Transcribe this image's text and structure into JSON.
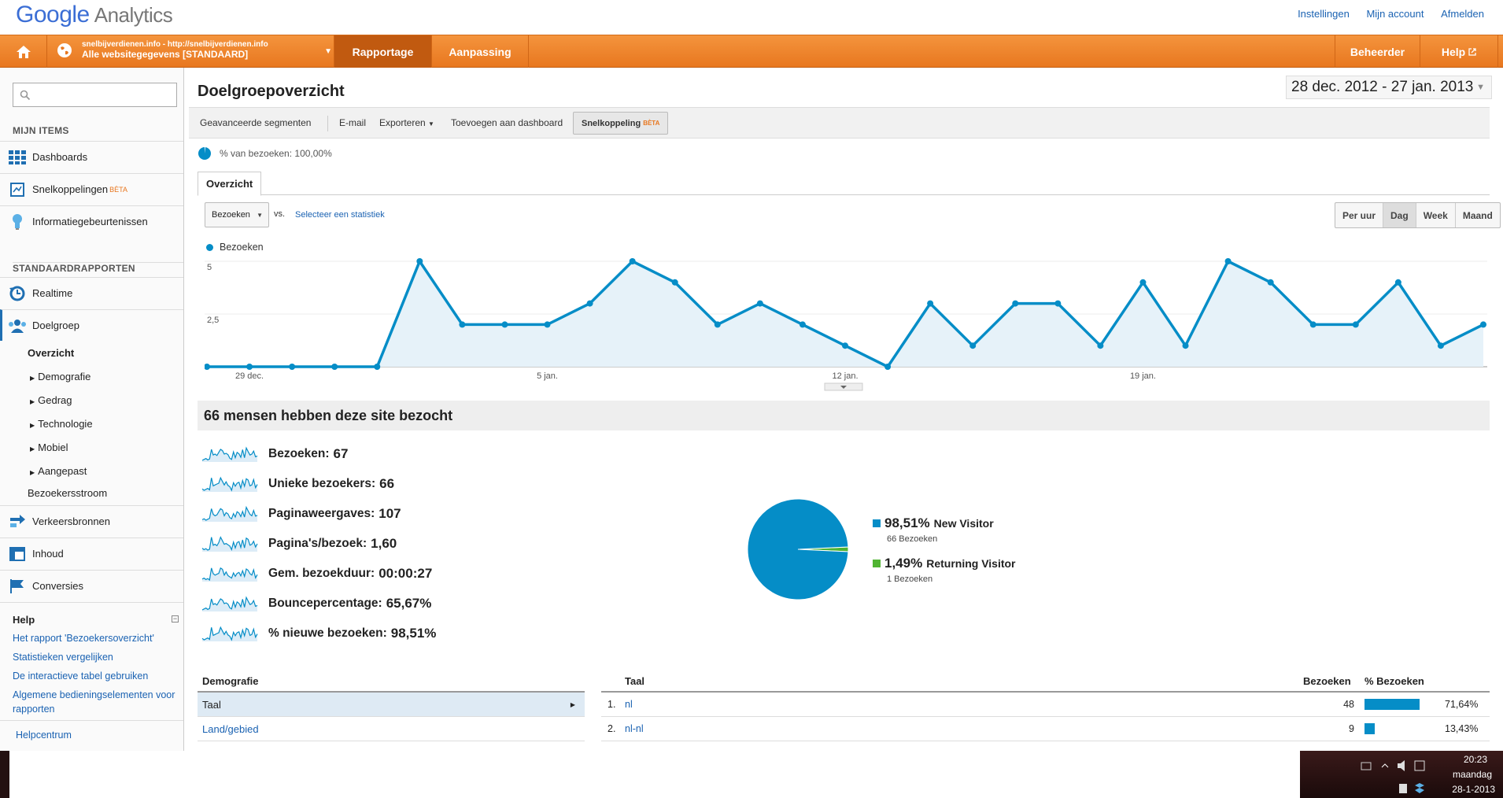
{
  "brand": {
    "logo_google": "Google",
    "logo_product": "Analytics",
    "links": [
      "Instellingen",
      "Mijn account",
      "Afmelden"
    ]
  },
  "nav": {
    "account_url": "snelbijverdienen.info - http://snelbijverdienen.info",
    "account_profile": "Alle websitegegevens [STANDAARD]",
    "tabs": [
      "Rapportage",
      "Aanpassing"
    ],
    "right": [
      "Beheerder",
      "Help"
    ]
  },
  "sidebar": {
    "section_my": "MIJN ITEMS",
    "my_items": [
      "Dashboards",
      "Snelkoppelingen",
      "Informatiegebeurtenissen"
    ],
    "beta": "BÈTA",
    "section_std": "STANDAARDRAPPORTEN",
    "std_items": [
      "Realtime",
      "Doelgroep"
    ],
    "doelgroep_sub": [
      "Overzicht",
      "Demografie",
      "Gedrag",
      "Technologie",
      "Mobiel",
      "Aangepast",
      "Bezoekersstroom"
    ],
    "more_items": [
      "Verkeersbronnen",
      "Inhoud",
      "Conversies"
    ],
    "help_title": "Help",
    "help_links": [
      "Het rapport 'Bezoekersoverzicht'",
      "Statistieken vergelijken",
      "De interactieve tabel gebruiken",
      "Algemene bedieningselementen voor",
      "rapporten",
      "Helpcentrum"
    ]
  },
  "main": {
    "title": "Doelgroepoverzicht",
    "date_range": "28 dec. 2012 - 27 jan. 2013",
    "toolbar": [
      "Geavanceerde segmenten",
      "E-mail",
      "Exporteren",
      "Toevoegen aan dashboard",
      "Snelkoppeling"
    ],
    "toolbar_beta": "BÈTA",
    "pct_visits": "% van bezoeken: 100,00%",
    "tab": "Overzicht",
    "metric_select": "Bezoeken",
    "vs": "vs.",
    "select_stat": "Selecteer een statistiek",
    "periods": [
      "Per uur",
      "Dag",
      "Week",
      "Maand"
    ],
    "legend": "Bezoeken",
    "summary": "66 mensen hebben deze site bezocht",
    "metrics": [
      {
        "label": "Bezoeken:",
        "value": "67"
      },
      {
        "label": "Unieke bezoekers:",
        "value": "66"
      },
      {
        "label": "Paginaweergaves:",
        "value": "107"
      },
      {
        "label": "Pagina's/bezoek:",
        "value": "1,60"
      },
      {
        "label": "Gem. bezoekduur:",
        "value": "00:00:27"
      },
      {
        "label": "Bouncepercentage:",
        "value": "65,67%"
      },
      {
        "label": "% nieuwe bezoeken:",
        "value": "98,51%"
      }
    ],
    "pie_legend": [
      {
        "pct": "98,51%",
        "name": "New Visitor",
        "sub": "66 Bezoeken",
        "color": "#058dc7"
      },
      {
        "pct": "1,49%",
        "name": "Returning Visitor",
        "sub": "1 Bezoeken",
        "color": "#50b432"
      }
    ],
    "demografie": {
      "header": "Demografie",
      "rows": [
        "Taal",
        "Land/gebied"
      ]
    },
    "taal": {
      "headers": [
        "Taal",
        "Bezoeken",
        "% Bezoeken"
      ],
      "rows": [
        {
          "idx": "1.",
          "name": "nl",
          "visits": "48",
          "pct": "71,64%",
          "frac": 0.7164
        },
        {
          "idx": "2.",
          "name": "nl-nl",
          "visits": "9",
          "pct": "13,43%",
          "frac": 0.1343
        }
      ]
    }
  },
  "taskbar": {
    "time": "20:23",
    "day": "maandag",
    "date": "28-1-2013"
  },
  "chart_data": {
    "type": "area",
    "title": "",
    "series": [
      {
        "name": "Bezoeken",
        "values": [
          0,
          0,
          0,
          0,
          0,
          5,
          2,
          2,
          2,
          3,
          5,
          4,
          2,
          3,
          2,
          1,
          0,
          3,
          1,
          3,
          3,
          1,
          4,
          1,
          5,
          4,
          2,
          2,
          4,
          1,
          2
        ]
      }
    ],
    "x": [
      "28 dec.",
      "29 dec.",
      "30 dec.",
      "31 dec.",
      "1 jan.",
      "2 jan.",
      "3 jan.",
      "4 jan.",
      "5 jan.",
      "6 jan.",
      "7 jan.",
      "8 jan.",
      "9 jan.",
      "10 jan.",
      "11 jan.",
      "12 jan.",
      "13 jan.",
      "14 jan.",
      "15 jan.",
      "16 jan.",
      "17 jan.",
      "18 jan.",
      "19 jan.",
      "20 jan.",
      "21 jan.",
      "22 jan.",
      "23 jan.",
      "24 jan.",
      "25 jan.",
      "26 jan.",
      "27 jan."
    ],
    "x_tick_labels": [
      "29 dec.",
      "5 jan.",
      "12 jan.",
      "19 jan."
    ],
    "y_tick_labels": [
      "5",
      "2,5"
    ],
    "ylim": [
      0,
      5
    ],
    "color": "#058dc7"
  },
  "pie_chart_data": {
    "type": "pie",
    "categories": [
      "New Visitor",
      "Returning Visitor"
    ],
    "values": [
      98.51,
      1.49
    ]
  }
}
